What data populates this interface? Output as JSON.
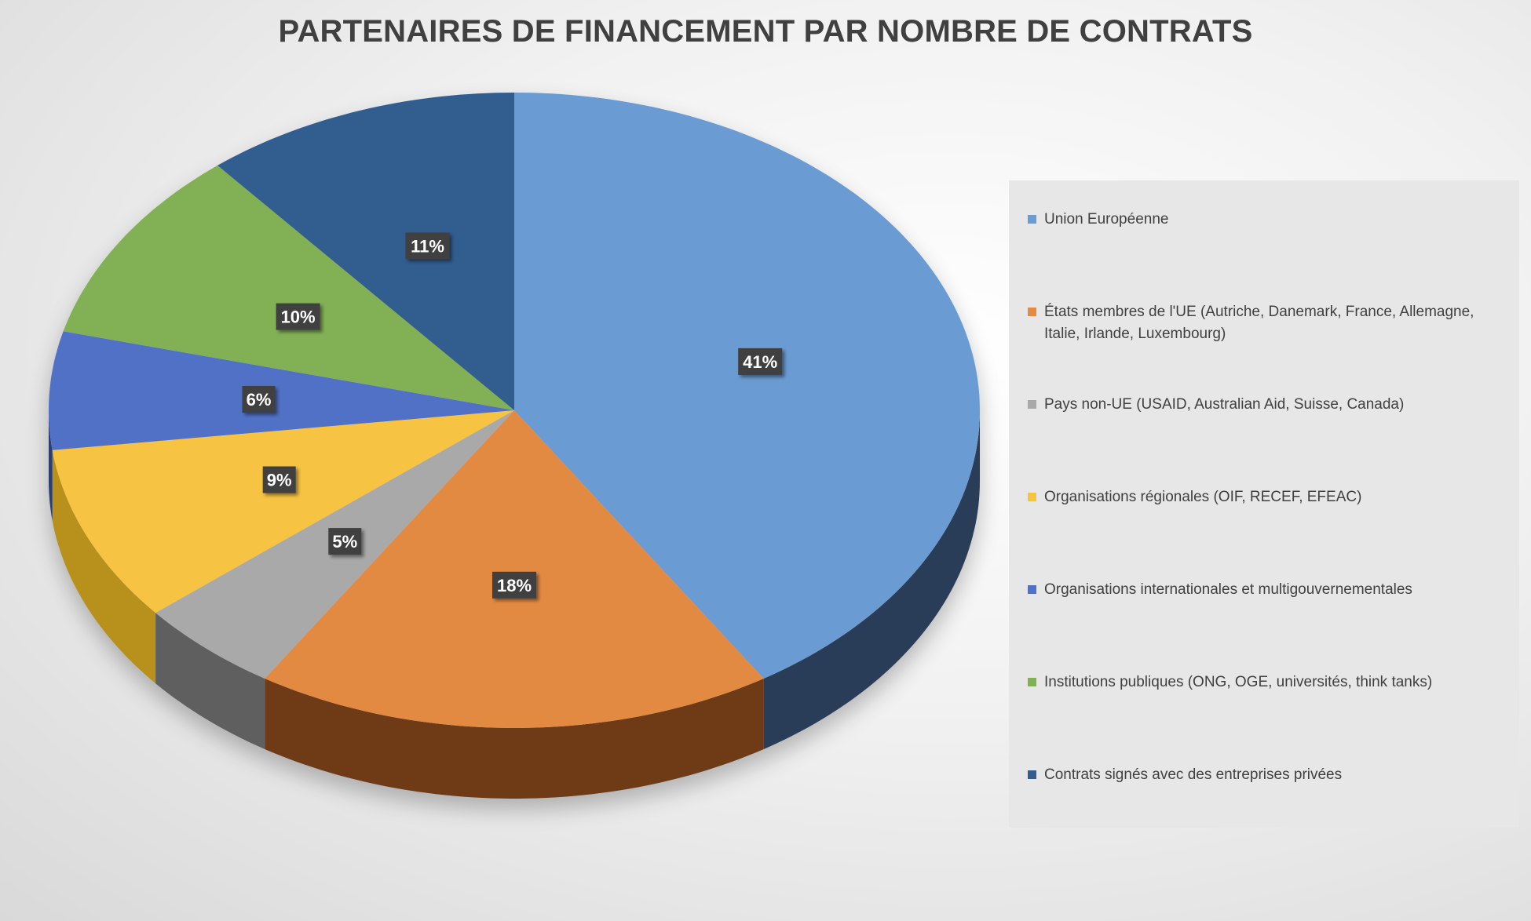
{
  "chart_data": {
    "type": "pie",
    "title": "PARTENAIRES DE FINANCEMENT PAR NOMBRE DE CONTRATS",
    "unit": "%",
    "legend_position": "right",
    "slices": [
      {
        "label": "Union Européenne",
        "value": 41,
        "color": "#6b9bd2",
        "side": "#2b3d58"
      },
      {
        "label": "États membres de l'UE (Autriche, Danemark, France, Allemagne, Italie, Irlande, Luxembourg)",
        "value": 18,
        "color": "#e38a43",
        "side": "#6e3a18"
      },
      {
        "label": "Pays non-UE (USAID, Australian Aid, Suisse, Canada)",
        "value": 5,
        "color": "#a9a9a9",
        "side": "#5e5e5e"
      },
      {
        "label": "Organisations régionales (OIF, RECEF, EFEAC)",
        "value": 9,
        "color": "#f6c443",
        "side": "#b8901d"
      },
      {
        "label": "Organisations internationales et multigouvernementales",
        "value": 6,
        "color": "#5171c6",
        "side": "#2c3f72"
      },
      {
        "label": "Institutions publiques (ONG, OGE, universités, think tanks)",
        "value": 10,
        "color": "#82b155",
        "side": "#4b6a2e"
      },
      {
        "label": "Contrats signés avec des entreprises privées",
        "value": 11,
        "color": "#335d8f",
        "side": "#1f3958"
      }
    ]
  }
}
